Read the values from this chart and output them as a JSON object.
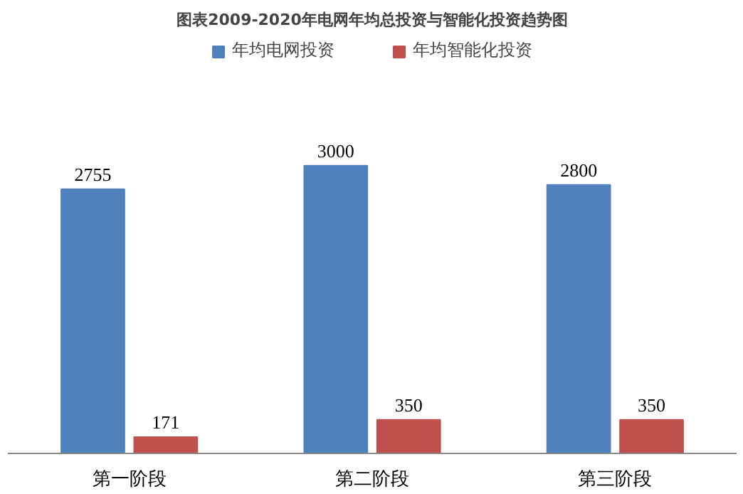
{
  "chart_data": {
    "type": "bar",
    "title": "图表2009-2020年电网年均总投资与智能化投资趋势图",
    "categories": [
      "第一阶段",
      "第二阶段",
      "第三阶段"
    ],
    "series": [
      {
        "name": "年均电网投资",
        "color": "#4f81bd",
        "values": [
          2755,
          3000,
          2800
        ]
      },
      {
        "name": "年均智能化投资",
        "color": "#c0504d",
        "values": [
          171,
          350,
          350
        ]
      }
    ],
    "data_labels": true,
    "legend": "top",
    "grid": false
  }
}
